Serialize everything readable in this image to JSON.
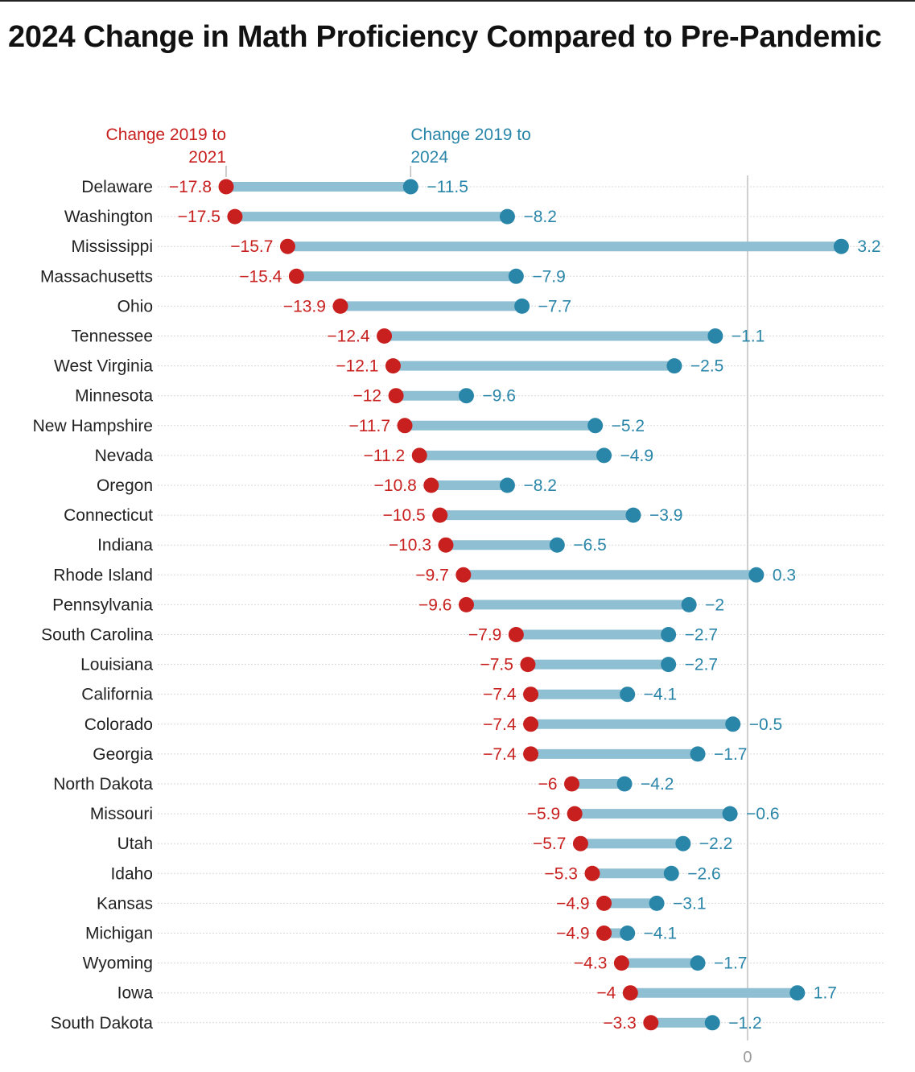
{
  "chart_data": {
    "type": "dumbbell",
    "title": "2024 Change in Math Proficiency Compared to Pre-Pandemic",
    "series": [
      {
        "name": "Change 2019 to 2021",
        "color": "#c8201f"
      },
      {
        "name": "Change 2019 to 2024",
        "color": "#2a86a8"
      }
    ],
    "connector_color": "#8fbfd3",
    "x_ticks": [
      "0"
    ],
    "xlim": [
      -17.8,
      3.2
    ],
    "rows": [
      {
        "state": "Delaware",
        "v2021": -17.8,
        "v2024": -11.5
      },
      {
        "state": "Washington",
        "v2021": -17.5,
        "v2024": -8.2
      },
      {
        "state": "Mississippi",
        "v2021": -15.7,
        "v2024": 3.2
      },
      {
        "state": "Massachusetts",
        "v2021": -15.4,
        "v2024": -7.9
      },
      {
        "state": "Ohio",
        "v2021": -13.9,
        "v2024": -7.7
      },
      {
        "state": "Tennessee",
        "v2021": -12.4,
        "v2024": -1.1
      },
      {
        "state": "West Virginia",
        "v2021": -12.1,
        "v2024": -2.5
      },
      {
        "state": "Minnesota",
        "v2021": -12,
        "v2024": -9.6
      },
      {
        "state": "New Hampshire",
        "v2021": -11.7,
        "v2024": -5.2
      },
      {
        "state": "Nevada",
        "v2021": -11.2,
        "v2024": -4.9
      },
      {
        "state": "Oregon",
        "v2021": -10.8,
        "v2024": -8.2
      },
      {
        "state": "Connecticut",
        "v2021": -10.5,
        "v2024": -3.9
      },
      {
        "state": "Indiana",
        "v2021": -10.3,
        "v2024": -6.5
      },
      {
        "state": "Rhode Island",
        "v2021": -9.7,
        "v2024": 0.3
      },
      {
        "state": "Pennsylvania",
        "v2021": -9.6,
        "v2024": -2
      },
      {
        "state": "South Carolina",
        "v2021": -7.9,
        "v2024": -2.7
      },
      {
        "state": "Louisiana",
        "v2021": -7.5,
        "v2024": -2.7
      },
      {
        "state": "California",
        "v2021": -7.4,
        "v2024": -4.1
      },
      {
        "state": "Colorado",
        "v2021": -7.4,
        "v2024": -0.5
      },
      {
        "state": "Georgia",
        "v2021": -7.4,
        "v2024": -1.7
      },
      {
        "state": "North Dakota",
        "v2021": -6,
        "v2024": -4.2
      },
      {
        "state": "Missouri",
        "v2021": -5.9,
        "v2024": -0.6
      },
      {
        "state": "Utah",
        "v2021": -5.7,
        "v2024": -2.2
      },
      {
        "state": "Idaho",
        "v2021": -5.3,
        "v2024": -2.6
      },
      {
        "state": "Kansas",
        "v2021": -4.9,
        "v2024": -3.1
      },
      {
        "state": "Michigan",
        "v2021": -4.9,
        "v2024": -4.1
      },
      {
        "state": "Wyoming",
        "v2021": -4.3,
        "v2024": -1.7
      },
      {
        "state": "Iowa",
        "v2021": -4,
        "v2024": 1.7
      },
      {
        "state": "South Dakota",
        "v2021": -3.3,
        "v2024": -1.2
      }
    ]
  }
}
